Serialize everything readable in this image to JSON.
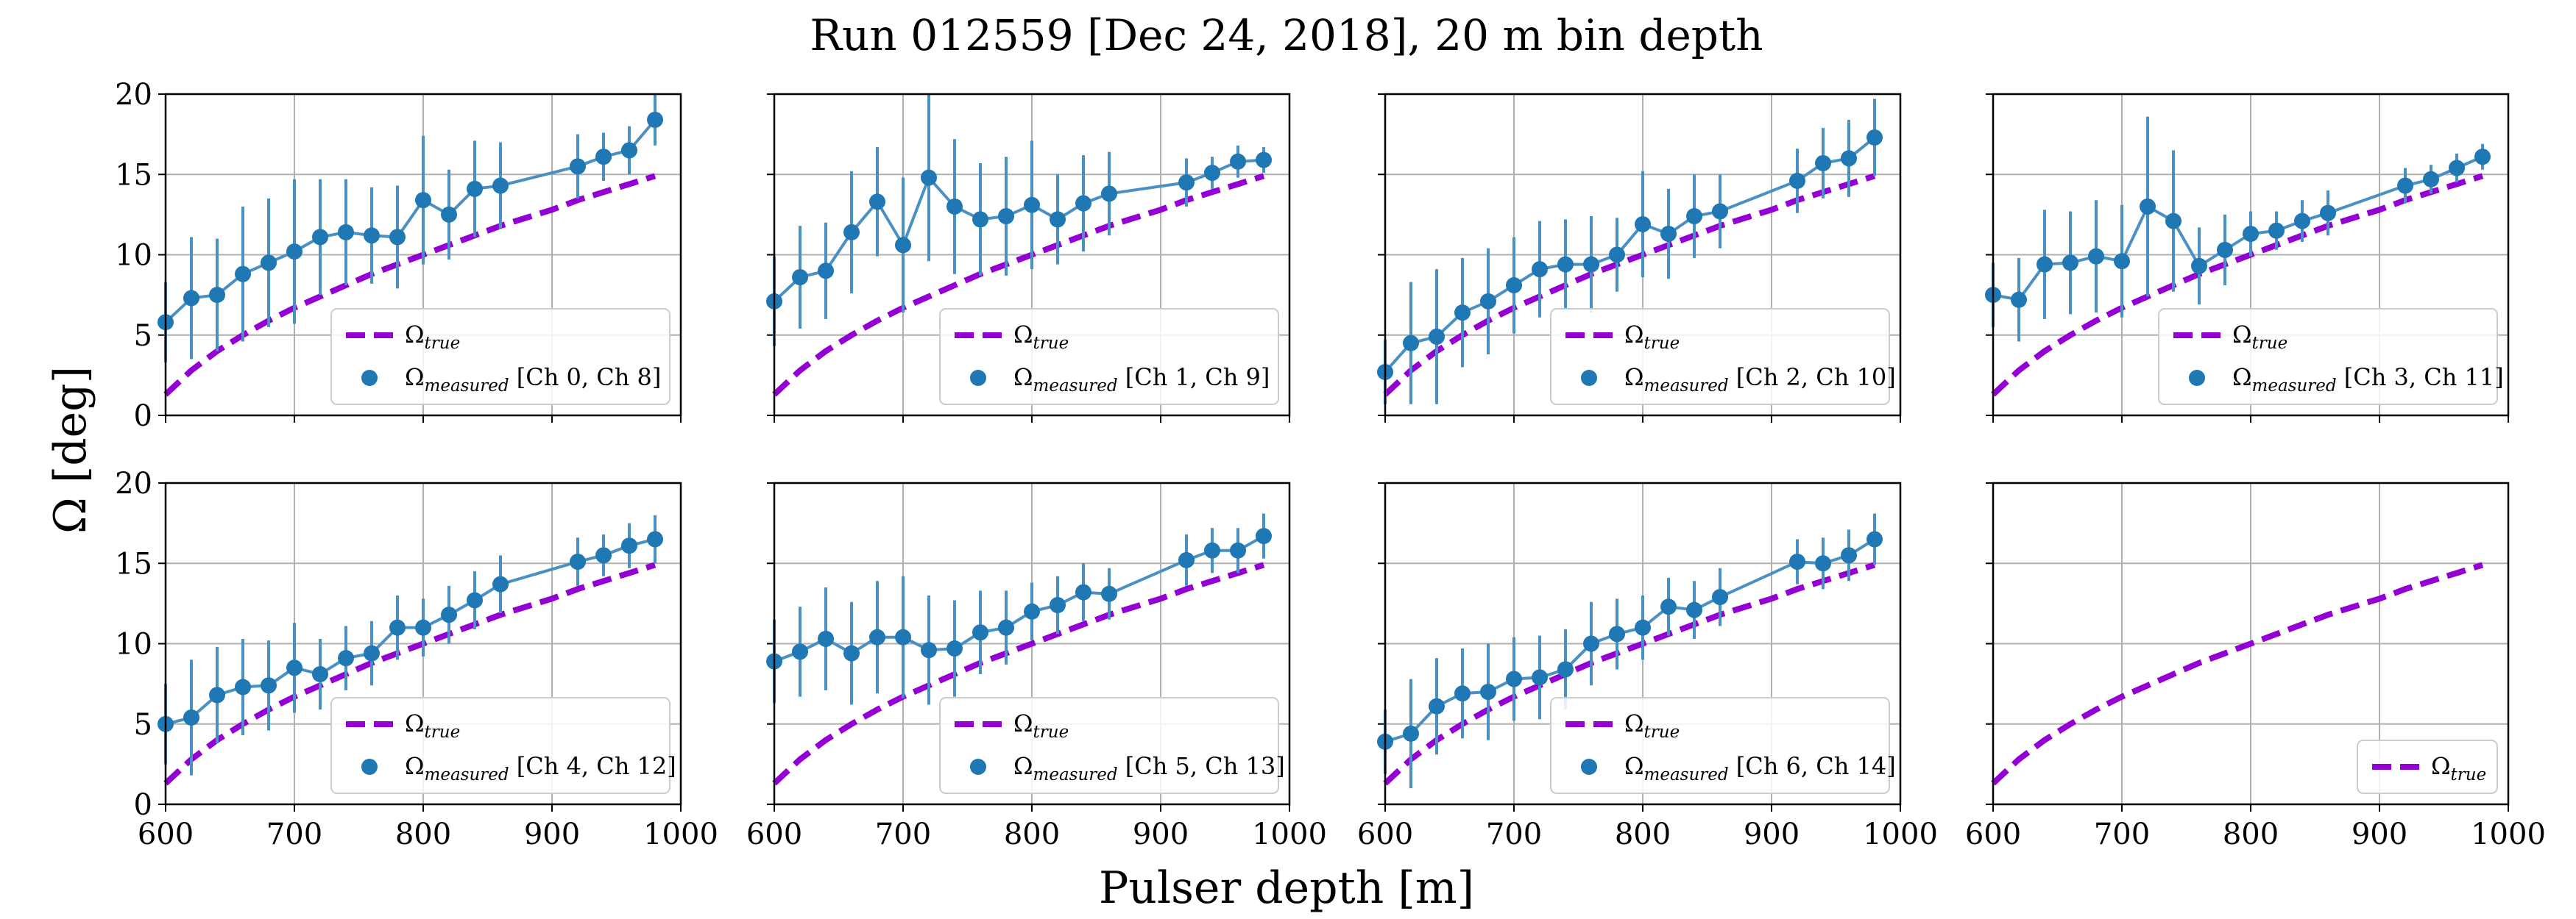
{
  "title": "Run 012559 [Dec 24, 2018], 20 m bin depth",
  "xlabel": "Pulser depth [m]",
  "ylabel": "Ω [deg]",
  "colors": {
    "true": "#9400D3",
    "measured": "#1f77b4",
    "measured_line": "#4a90c2"
  },
  "chart_data": {
    "type": "scatter",
    "xlim": [
      600,
      1000
    ],
    "ylim": [
      0,
      20
    ],
    "xticks": [
      600,
      700,
      800,
      900,
      1000
    ],
    "yticks": [
      0,
      5,
      10,
      15,
      20
    ],
    "grid": true,
    "legend_placement": "lower-right",
    "true_label": "Ω_true",
    "true_curve": {
      "x": [
        600,
        620,
        640,
        660,
        680,
        700,
        720,
        740,
        760,
        780,
        800,
        820,
        840,
        860,
        880,
        900,
        920,
        940,
        960,
        980
      ],
      "y": [
        1.3,
        2.8,
        4.0,
        5.0,
        5.9,
        6.7,
        7.4,
        8.1,
        8.8,
        9.4,
        10.0,
        10.6,
        11.2,
        11.8,
        12.3,
        12.8,
        13.4,
        13.9,
        14.4,
        14.9
      ]
    },
    "panels": [
      {
        "legend_label": "Ω_measured [Ch 0, Ch 8]",
        "x": [
          600,
          620,
          640,
          660,
          680,
          700,
          720,
          740,
          760,
          780,
          800,
          820,
          840,
          860,
          920,
          940,
          960,
          980
        ],
        "y": [
          5.8,
          7.3,
          7.5,
          8.8,
          9.5,
          10.2,
          11.1,
          11.4,
          11.2,
          11.1,
          13.4,
          12.5,
          14.1,
          14.3,
          15.5,
          16.1,
          16.5,
          18.4
        ],
        "err": [
          2.5,
          3.8,
          3.5,
          4.2,
          4.0,
          4.5,
          3.6,
          3.3,
          3.0,
          3.2,
          4.0,
          2.8,
          3.0,
          2.7,
          2.0,
          1.5,
          1.5,
          1.6
        ]
      },
      {
        "legend_label": "Ω_measured [Ch 1, Ch 9]",
        "x": [
          600,
          620,
          640,
          660,
          680,
          700,
          720,
          740,
          760,
          780,
          800,
          820,
          840,
          860,
          920,
          940,
          960,
          980
        ],
        "y": [
          7.1,
          8.6,
          9.0,
          11.4,
          13.3,
          10.6,
          14.8,
          13.0,
          12.2,
          12.4,
          13.1,
          12.2,
          13.2,
          13.8,
          14.5,
          15.1,
          15.8,
          15.9
        ],
        "err": [
          2.8,
          3.2,
          3.0,
          3.8,
          3.4,
          4.2,
          5.2,
          4.2,
          3.5,
          3.7,
          4.0,
          2.8,
          3.0,
          2.6,
          1.5,
          1.0,
          1.0,
          0.8
        ]
      },
      {
        "legend_label": "Ω_measured [Ch 2, Ch 10]",
        "x": [
          600,
          620,
          640,
          660,
          680,
          700,
          720,
          740,
          760,
          780,
          800,
          820,
          840,
          860,
          920,
          940,
          960,
          980
        ],
        "y": [
          2.7,
          4.5,
          4.9,
          6.4,
          7.1,
          8.1,
          9.1,
          9.4,
          9.4,
          10.0,
          11.9,
          11.3,
          12.4,
          12.7,
          14.6,
          15.7,
          16.0,
          17.3
        ],
        "err": [
          2.0,
          3.8,
          4.2,
          3.4,
          3.3,
          3.0,
          3.0,
          2.8,
          3.0,
          2.3,
          3.3,
          2.8,
          2.6,
          2.3,
          2.0,
          2.2,
          2.4,
          2.4
        ]
      },
      {
        "legend_label": "Ω_measured [Ch 3, Ch 11]",
        "x": [
          600,
          620,
          640,
          660,
          680,
          700,
          720,
          740,
          760,
          780,
          800,
          820,
          840,
          860,
          920,
          940,
          960,
          980
        ],
        "y": [
          7.5,
          7.2,
          9.4,
          9.5,
          9.9,
          9.6,
          13.0,
          12.1,
          9.3,
          10.3,
          11.3,
          11.5,
          12.1,
          12.6,
          14.3,
          14.7,
          15.4,
          16.1
        ],
        "err": [
          2.0,
          2.6,
          3.4,
          3.2,
          3.5,
          3.5,
          5.6,
          4.4,
          2.4,
          2.2,
          1.4,
          1.2,
          1.3,
          1.4,
          1.1,
          0.9,
          0.9,
          0.8
        ]
      },
      {
        "legend_label": "Ω_measured [Ch 4, Ch 12]",
        "x": [
          600,
          620,
          640,
          660,
          680,
          700,
          720,
          740,
          760,
          780,
          800,
          820,
          840,
          860,
          920,
          940,
          960,
          980
        ],
        "y": [
          5.0,
          5.4,
          6.8,
          7.3,
          7.4,
          8.5,
          8.1,
          9.1,
          9.4,
          11.0,
          11.0,
          11.8,
          12.7,
          13.7,
          15.1,
          15.5,
          16.1,
          16.5
        ],
        "err": [
          2.5,
          3.6,
          3.0,
          3.0,
          2.8,
          2.8,
          2.2,
          2.0,
          2.0,
          2.0,
          1.8,
          1.8,
          1.8,
          1.8,
          1.5,
          1.3,
          1.4,
          1.5
        ]
      },
      {
        "legend_label": "Ω_measured [Ch 5, Ch 13]",
        "x": [
          600,
          620,
          640,
          660,
          680,
          700,
          720,
          740,
          760,
          780,
          800,
          820,
          840,
          860,
          920,
          940,
          960,
          980
        ],
        "y": [
          8.9,
          9.5,
          10.3,
          9.4,
          10.4,
          10.4,
          9.6,
          9.7,
          10.7,
          11.0,
          12.0,
          12.4,
          13.2,
          13.1,
          15.2,
          15.8,
          15.8,
          16.7
        ],
        "err": [
          2.6,
          2.8,
          3.2,
          3.2,
          3.5,
          3.8,
          3.4,
          3.0,
          2.6,
          2.3,
          1.8,
          1.8,
          1.8,
          1.6,
          1.6,
          1.4,
          1.4,
          1.4
        ]
      },
      {
        "legend_label": "Ω_measured [Ch 6, Ch 14]",
        "x": [
          600,
          620,
          640,
          660,
          680,
          700,
          720,
          740,
          760,
          780,
          800,
          820,
          840,
          860,
          920,
          940,
          960,
          980
        ],
        "y": [
          3.9,
          4.4,
          6.1,
          6.9,
          7.0,
          7.8,
          7.9,
          8.4,
          10.0,
          10.6,
          11.0,
          12.3,
          12.1,
          12.9,
          15.1,
          15.0,
          15.5,
          16.5
        ],
        "err": [
          2.0,
          3.4,
          3.0,
          2.8,
          3.0,
          2.6,
          2.6,
          2.5,
          2.6,
          2.2,
          2.0,
          1.8,
          1.8,
          1.8,
          1.4,
          1.6,
          1.6,
          1.6
        ]
      },
      {
        "legend_label": "",
        "x": [],
        "y": [],
        "err": []
      }
    ]
  }
}
